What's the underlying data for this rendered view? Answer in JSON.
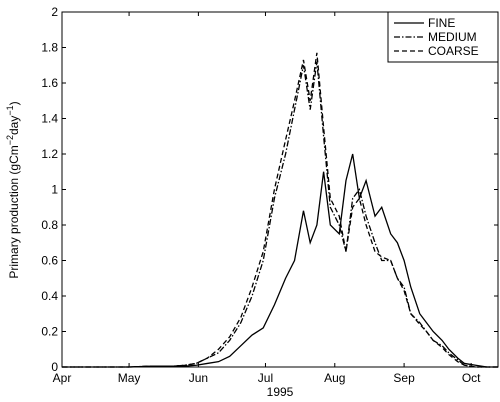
{
  "chart_data": {
    "type": "line",
    "ylabel": [
      "Primary production (gCm",
      "−2",
      "day",
      "−1",
      ")"
    ],
    "xlabel": "1995",
    "x": [
      0,
      10,
      20,
      30,
      40,
      50,
      55,
      60,
      65,
      70,
      75,
      80,
      85,
      90,
      95,
      100,
      104,
      108,
      111,
      114,
      117,
      120,
      124,
      127,
      130,
      133,
      136,
      140,
      143,
      147,
      150,
      153,
      156,
      160,
      163,
      166,
      170,
      173,
      177,
      180,
      185,
      190,
      195
    ],
    "series": [
      {
        "name": "FINE",
        "color": "#000000",
        "dash": "solid",
        "values": [
          0,
          0,
          0,
          0,
          0.005,
          0.005,
          0.005,
          0.01,
          0.02,
          0.03,
          0.06,
          0.12,
          0.18,
          0.22,
          0.35,
          0.5,
          0.6,
          0.88,
          0.7,
          0.8,
          1.1,
          0.8,
          0.75,
          1.05,
          1.2,
          0.95,
          1.05,
          0.85,
          0.9,
          0.75,
          0.7,
          0.6,
          0.45,
          0.3,
          0.25,
          0.2,
          0.15,
          0.1,
          0.05,
          0.02,
          0.01,
          0,
          0
        ]
      },
      {
        "name": "MEDIUM",
        "color": "#000000",
        "dash": "dashdot",
        "values": [
          0,
          0,
          0,
          0,
          0.005,
          0.005,
          0.01,
          0.02,
          0.05,
          0.08,
          0.15,
          0.25,
          0.4,
          0.6,
          0.95,
          1.2,
          1.45,
          1.7,
          1.45,
          1.72,
          1.3,
          0.9,
          0.8,
          0.65,
          0.95,
          1.0,
          0.85,
          0.7,
          0.6,
          0.6,
          0.5,
          0.45,
          0.3,
          0.25,
          0.2,
          0.15,
          0.12,
          0.08,
          0.04,
          0.01,
          0,
          0,
          0
        ]
      },
      {
        "name": "COARSE",
        "color": "#000000",
        "dash": "dashed",
        "values": [
          0,
          0,
          0,
          0,
          0.005,
          0.005,
          0.01,
          0.02,
          0.05,
          0.1,
          0.17,
          0.28,
          0.45,
          0.65,
          1.0,
          1.28,
          1.5,
          1.73,
          1.5,
          1.77,
          1.35,
          0.95,
          0.85,
          0.65,
          0.9,
          0.95,
          0.8,
          0.65,
          0.62,
          0.6,
          0.5,
          0.43,
          0.3,
          0.24,
          0.2,
          0.15,
          0.11,
          0.07,
          0.03,
          0.01,
          0,
          0,
          0
        ]
      }
    ],
    "xlim": [
      0,
      195
    ],
    "xticks": [
      {
        "value": 0,
        "label": "Apr"
      },
      {
        "value": 30,
        "label": "May"
      },
      {
        "value": 61,
        "label": "Jun"
      },
      {
        "value": 91,
        "label": "Jul"
      },
      {
        "value": 122,
        "label": "Aug"
      },
      {
        "value": 153,
        "label": "Sep"
      },
      {
        "value": 183,
        "label": "Oct"
      }
    ],
    "ylim": [
      0,
      2
    ],
    "yticks": [
      0,
      0.2,
      0.4,
      0.6,
      0.8,
      1,
      1.2,
      1.4,
      1.6,
      1.8,
      2
    ],
    "legend": "top-right"
  }
}
